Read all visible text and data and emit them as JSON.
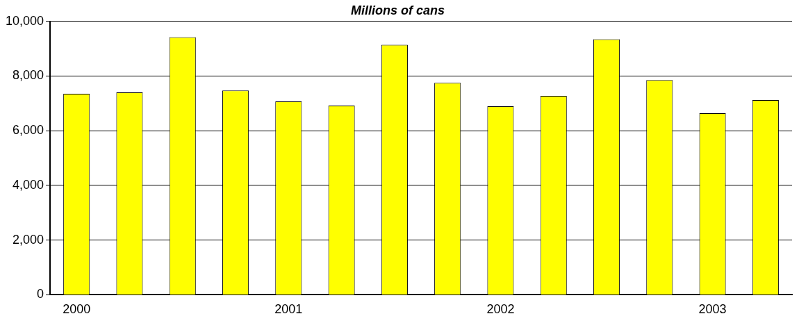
{
  "chart_data": {
    "type": "bar",
    "title": "Millions of cans",
    "categories": [
      "2000",
      null,
      null,
      null,
      "2001",
      null,
      null,
      null,
      "2002",
      null,
      null,
      null,
      "2003",
      null
    ],
    "values": [
      7350,
      7400,
      9420,
      7470,
      7070,
      6920,
      9140,
      7750,
      6890,
      7270,
      9340,
      7850,
      6640,
      7120
    ],
    "color": "#ffff00",
    "ylim": [
      0,
      10000
    ],
    "yticks": [
      {
        "value": 0,
        "label": "0"
      },
      {
        "value": 2000,
        "label": "2,000"
      },
      {
        "value": 4000,
        "label": "4,000"
      },
      {
        "value": 6000,
        "label": "6,000"
      },
      {
        "value": 8000,
        "label": "8,000"
      },
      {
        "value": 10000,
        "label": "10,000"
      }
    ],
    "grid": "y",
    "legend": false
  }
}
